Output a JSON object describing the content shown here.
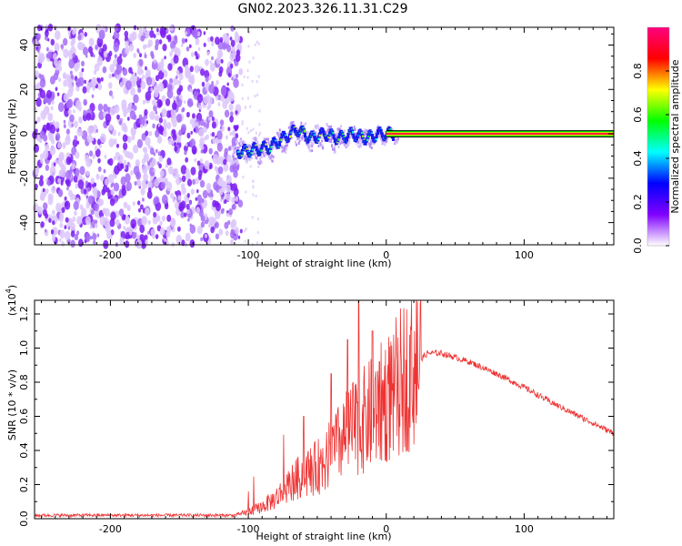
{
  "title": "GN02.2023.326.11.31.C29",
  "chart_data": [
    {
      "type": "heatmap",
      "name": "spectrogram",
      "xlabel": "Height of straight line (km)",
      "ylabel": "Frequency (Hz)",
      "xlim": [
        -255,
        165
      ],
      "ylim": [
        -50,
        48
      ],
      "xticks": [
        -200,
        -100,
        0,
        100
      ],
      "yticks": [
        -40,
        -20,
        0,
        20,
        40
      ],
      "colorbar": {
        "label": "Normalized spectral amplitude",
        "range": [
          0,
          1
        ],
        "ticks": [
          "0.0",
          "0.2",
          "0.4",
          "0.6",
          "0.8"
        ],
        "colors": [
          "#ffffff",
          "#8000ff",
          "#0000ff",
          "#00ffff",
          "#00ff00",
          "#ffff00",
          "#ff0000",
          "#ff0080"
        ]
      },
      "noise_region": {
        "x": [
          -255,
          -105
        ],
        "y": [
          -50,
          48
        ],
        "amplitude": 0.2
      },
      "signal_track": [
        {
          "x": -105,
          "y": -8
        },
        {
          "x": -95,
          "y": -7
        },
        {
          "x": -85,
          "y": -6
        },
        {
          "x": -75,
          "y": -2
        },
        {
          "x": -65,
          "y": 2
        },
        {
          "x": -55,
          "y": -2
        },
        {
          "x": -45,
          "y": 0
        },
        {
          "x": -35,
          "y": -2
        },
        {
          "x": -25,
          "y": 0
        },
        {
          "x": -15,
          "y": -2
        },
        {
          "x": -5,
          "y": 0
        },
        {
          "x": 5,
          "y": 0
        }
      ],
      "carrier_line": {
        "x": [
          0,
          165
        ],
        "y": 0,
        "amplitude": 1.0,
        "grid": false
      }
    },
    {
      "type": "line",
      "name": "snr",
      "xlabel": "Height of straight line (km)",
      "ylabel": "SNR (10 * v/v)",
      "yscale_label": "(x10",
      "yscale_exp": "4",
      "yscale_suffix": ")",
      "xlim": [
        -255,
        165
      ],
      "ylim": [
        0,
        1.28
      ],
      "xticks": [
        -200,
        -100,
        0,
        100
      ],
      "yticks": [
        "0.0",
        "0.2",
        "0.4",
        "0.6",
        "0.8",
        "1.0",
        "1.2"
      ],
      "color": "#ee3333",
      "envelope": [
        {
          "x": -255,
          "y": 0.02
        },
        {
          "x": -110,
          "y": 0.02
        },
        {
          "x": -100,
          "y": 0.04
        },
        {
          "x": -90,
          "y": 0.07
        },
        {
          "x": -80,
          "y": 0.12
        },
        {
          "x": -70,
          "y": 0.2
        },
        {
          "x": -60,
          "y": 0.26
        },
        {
          "x": -50,
          "y": 0.3
        },
        {
          "x": -40,
          "y": 0.38
        },
        {
          "x": -30,
          "y": 0.48
        },
        {
          "x": -20,
          "y": 0.55
        },
        {
          "x": -10,
          "y": 0.62
        },
        {
          "x": 0,
          "y": 0.7
        },
        {
          "x": 10,
          "y": 0.8
        },
        {
          "x": 20,
          "y": 0.9
        },
        {
          "x": 30,
          "y": 0.97
        },
        {
          "x": 40,
          "y": 0.97
        },
        {
          "x": 60,
          "y": 0.92
        },
        {
          "x": 80,
          "y": 0.85
        },
        {
          "x": 100,
          "y": 0.77
        },
        {
          "x": 120,
          "y": 0.68
        },
        {
          "x": 140,
          "y": 0.6
        },
        {
          "x": 165,
          "y": 0.5
        }
      ],
      "peaks": [
        {
          "x": -20,
          "y": 1.28
        },
        {
          "x": -28,
          "y": 1.05
        },
        {
          "x": -10,
          "y": 1.1
        },
        {
          "x": -40,
          "y": 0.85
        },
        {
          "x": -60,
          "y": 0.6
        },
        {
          "x": -5,
          "y": 0.92
        }
      ]
    }
  ]
}
